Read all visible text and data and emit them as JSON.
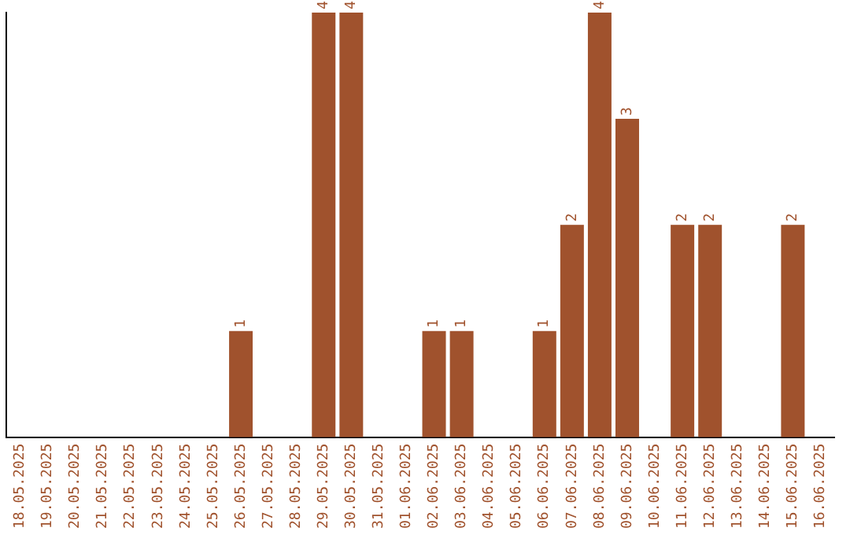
{
  "chart_data": {
    "type": "bar",
    "categories": [
      "18.05.2025",
      "19.05.2025",
      "20.05.2025",
      "21.05.2025",
      "22.05.2025",
      "23.05.2025",
      "24.05.2025",
      "25.05.2025",
      "26.05.2025",
      "27.05.2025",
      "28.05.2025",
      "29.05.2025",
      "30.05.2025",
      "31.05.2025",
      "01.06.2025",
      "02.06.2025",
      "03.06.2025",
      "04.06.2025",
      "05.06.2025",
      "06.06.2025",
      "07.06.2025",
      "08.06.2025",
      "09.06.2025",
      "10.06.2025",
      "11.06.2025",
      "12.06.2025",
      "13.06.2025",
      "14.06.2025",
      "15.06.2025",
      "16.06.2025"
    ],
    "values": [
      0,
      0,
      0,
      0,
      0,
      0,
      0,
      0,
      1,
      0,
      0,
      4,
      4,
      0,
      0,
      1,
      1,
      0,
      0,
      1,
      2,
      4,
      3,
      0,
      2,
      2,
      0,
      0,
      2,
      0
    ],
    "value_labels": [
      null,
      null,
      null,
      null,
      null,
      null,
      null,
      null,
      "1",
      null,
      null,
      "4",
      "4",
      null,
      null,
      "1",
      "1",
      null,
      null,
      "1",
      "2",
      "4",
      "3",
      null,
      "2",
      "2",
      null,
      null,
      "2",
      null
    ],
    "color": "#a0522d",
    "grid": false,
    "legend": false,
    "tick_labels": "x"
  }
}
